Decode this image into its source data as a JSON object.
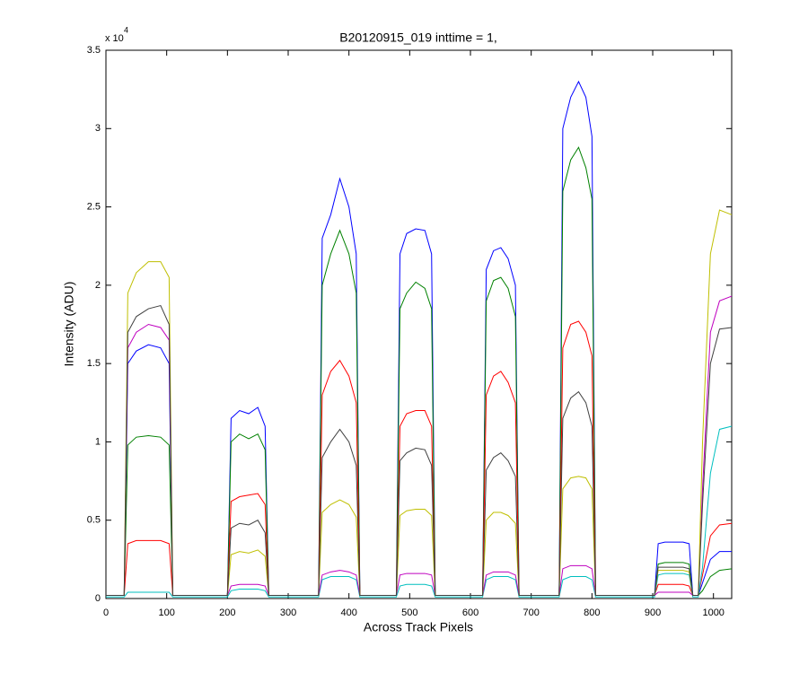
{
  "chart_data": {
    "type": "line",
    "title": "B20120915_019 inttime = 1,",
    "xlabel": "Across Track Pixels",
    "ylabel": "Intensity (ADU)",
    "y_multiplier": {
      "base": "x 10",
      "exponent": "4"
    },
    "xlim": [
      0,
      1030
    ],
    "ylim": [
      0,
      3.5
    ],
    "xticks": [
      0,
      100,
      200,
      300,
      400,
      500,
      600,
      700,
      800,
      900,
      1000
    ],
    "yticks": [
      0,
      0.5,
      1,
      1.5,
      2,
      2.5,
      3,
      3.5
    ],
    "grid": false,
    "x": [
      0,
      30,
      36,
      50,
      70,
      90,
      104,
      110,
      200,
      206,
      220,
      235,
      250,
      262,
      268,
      350,
      356,
      370,
      385,
      400,
      412,
      418,
      478,
      484,
      495,
      510,
      525,
      536,
      542,
      620,
      626,
      638,
      650,
      662,
      674,
      680,
      746,
      752,
      765,
      778,
      790,
      800,
      806,
      903,
      909,
      920,
      935,
      950,
      960,
      966,
      975,
      982,
      995,
      1010,
      1030
    ],
    "series": [
      {
        "color": "#0000ff",
        "values": [
          0.02,
          0.02,
          1.5,
          1.58,
          1.62,
          1.6,
          1.5,
          0.02,
          0.02,
          1.15,
          1.2,
          1.18,
          1.22,
          1.1,
          0.02,
          0.02,
          2.3,
          2.45,
          2.68,
          2.5,
          2.2,
          0.02,
          0.02,
          2.2,
          2.33,
          2.36,
          2.35,
          2.2,
          0.02,
          0.02,
          2.1,
          2.22,
          2.24,
          2.17,
          2.0,
          0.02,
          0.02,
          3.0,
          3.2,
          3.3,
          3.2,
          2.95,
          0.02,
          0.02,
          0.35,
          0.36,
          0.36,
          0.36,
          0.35,
          0.02,
          0.02,
          0.1,
          0.25,
          0.3,
          0.3
        ]
      },
      {
        "color": "#008000",
        "values": [
          0.02,
          0.02,
          0.98,
          1.03,
          1.04,
          1.03,
          0.98,
          0.02,
          0.02,
          1.0,
          1.05,
          1.02,
          1.05,
          0.95,
          0.02,
          0.02,
          2.0,
          2.2,
          2.35,
          2.2,
          1.95,
          0.02,
          0.02,
          1.85,
          1.95,
          2.02,
          1.98,
          1.85,
          0.02,
          0.02,
          1.9,
          2.03,
          2.05,
          1.98,
          1.8,
          0.02,
          0.02,
          2.6,
          2.8,
          2.88,
          2.75,
          2.55,
          0.02,
          0.02,
          0.22,
          0.23,
          0.23,
          0.23,
          0.22,
          0.02,
          0.02,
          0.05,
          0.14,
          0.18,
          0.19
        ]
      },
      {
        "color": "#ff0000",
        "values": [
          0.02,
          0.02,
          0.35,
          0.37,
          0.37,
          0.37,
          0.35,
          0.02,
          0.02,
          0.62,
          0.65,
          0.66,
          0.67,
          0.6,
          0.02,
          0.02,
          1.3,
          1.45,
          1.52,
          1.42,
          1.25,
          0.02,
          0.02,
          1.1,
          1.18,
          1.2,
          1.2,
          1.1,
          0.02,
          0.02,
          1.3,
          1.42,
          1.45,
          1.38,
          1.25,
          0.02,
          0.02,
          1.6,
          1.75,
          1.77,
          1.7,
          1.55,
          0.02,
          0.02,
          0.09,
          0.09,
          0.09,
          0.09,
          0.08,
          0.02,
          0.02,
          0.15,
          0.4,
          0.47,
          0.48
        ]
      },
      {
        "color": "#00bfbf",
        "values": [
          0.01,
          0.01,
          0.04,
          0.04,
          0.04,
          0.04,
          0.04,
          0.01,
          0.01,
          0.05,
          0.06,
          0.06,
          0.06,
          0.05,
          0.01,
          0.01,
          0.12,
          0.14,
          0.14,
          0.14,
          0.12,
          0.01,
          0.01,
          0.08,
          0.09,
          0.09,
          0.09,
          0.08,
          0.01,
          0.01,
          0.12,
          0.14,
          0.14,
          0.14,
          0.12,
          0.01,
          0.01,
          0.12,
          0.14,
          0.14,
          0.14,
          0.12,
          0.01,
          0.01,
          0.15,
          0.16,
          0.16,
          0.16,
          0.15,
          0.01,
          0.01,
          0.2,
          0.8,
          1.08,
          1.1
        ]
      },
      {
        "color": "#bf00bf",
        "values": [
          0.02,
          0.02,
          1.6,
          1.7,
          1.75,
          1.73,
          1.65,
          0.02,
          0.02,
          0.08,
          0.09,
          0.09,
          0.09,
          0.08,
          0.02,
          0.02,
          0.15,
          0.17,
          0.18,
          0.17,
          0.15,
          0.02,
          0.02,
          0.15,
          0.16,
          0.16,
          0.16,
          0.15,
          0.02,
          0.02,
          0.15,
          0.17,
          0.17,
          0.17,
          0.15,
          0.02,
          0.02,
          0.19,
          0.21,
          0.21,
          0.21,
          0.19,
          0.02,
          0.02,
          0.04,
          0.04,
          0.04,
          0.04,
          0.04,
          0.02,
          0.02,
          0.7,
          1.7,
          1.9,
          1.93
        ]
      },
      {
        "color": "#bfbf00",
        "values": [
          0.02,
          0.02,
          1.95,
          2.08,
          2.15,
          2.15,
          2.05,
          0.02,
          0.02,
          0.28,
          0.3,
          0.29,
          0.31,
          0.27,
          0.02,
          0.02,
          0.55,
          0.6,
          0.63,
          0.6,
          0.52,
          0.02,
          0.02,
          0.53,
          0.56,
          0.57,
          0.57,
          0.53,
          0.02,
          0.02,
          0.5,
          0.55,
          0.55,
          0.53,
          0.48,
          0.02,
          0.02,
          0.7,
          0.77,
          0.78,
          0.77,
          0.7,
          0.02,
          0.02,
          0.18,
          0.18,
          0.18,
          0.18,
          0.17,
          0.02,
          0.02,
          1.0,
          2.2,
          2.48,
          2.45
        ]
      },
      {
        "color": "#404040",
        "values": [
          0.02,
          0.02,
          1.7,
          1.8,
          1.85,
          1.87,
          1.75,
          0.02,
          0.02,
          0.45,
          0.48,
          0.47,
          0.5,
          0.42,
          0.02,
          0.02,
          0.9,
          1.0,
          1.08,
          1.0,
          0.85,
          0.02,
          0.02,
          0.88,
          0.93,
          0.96,
          0.95,
          0.85,
          0.02,
          0.02,
          0.82,
          0.9,
          0.93,
          0.88,
          0.78,
          0.02,
          0.02,
          1.15,
          1.28,
          1.32,
          1.25,
          1.1,
          0.02,
          0.02,
          0.2,
          0.2,
          0.2,
          0.2,
          0.19,
          0.02,
          0.02,
          0.6,
          1.5,
          1.72,
          1.73
        ]
      }
    ]
  }
}
